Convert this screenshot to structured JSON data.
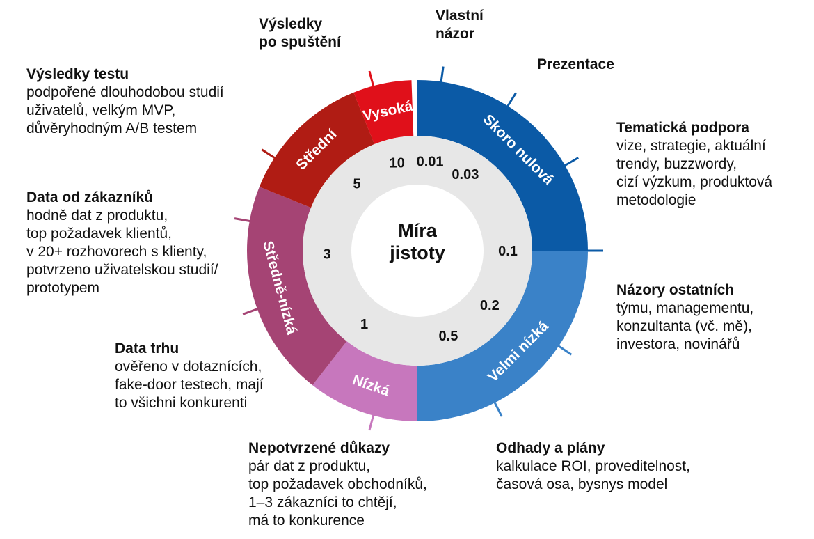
{
  "center": {
    "line1": "Míra",
    "line2": "jistoty"
  },
  "segments": [
    {
      "name": "Skoro nulová",
      "color": "#0b5aa6"
    },
    {
      "name": "Velmi nízká",
      "color": "#3a82c8"
    },
    {
      "name": "Nízká",
      "color": "#c777bd"
    },
    {
      "name": "Středně-nízká",
      "color": "#a54474"
    },
    {
      "name": "Střední",
      "color": "#b01c14"
    },
    {
      "name": "Vysoká",
      "color": "#e0101a"
    }
  ],
  "scale": [
    "0.01",
    "0.03",
    "0.1",
    "0.2",
    "0.5",
    "1",
    "3",
    "5",
    "10"
  ],
  "labels": {
    "vlastni": {
      "title": "Vlastní\nnázor"
    },
    "prezentace": {
      "title": "Prezentace"
    },
    "tematicka": {
      "title": "Tematická podpora",
      "desc": "vize, strategie, aktuální\ntrendy, buzzwordy,\ncizí výzkum, produktová\nmetodologie"
    },
    "nazory": {
      "title": "Názory ostatních",
      "desc": "týmu, managementu,\nkonzultanta (vč. mě),\ninvestora, novinářů"
    },
    "odhady": {
      "title": "Odhady a plány",
      "desc": "kalkulace ROI, proveditelnost,\nčasová osa, bysnys model"
    },
    "nepotvrzene": {
      "title": "Nepotvrzené důkazy",
      "desc": "pár dat z produktu,\ntop požadavek obchodníků,\n1–3 zákazníci to chtějí,\nmá to konkurence"
    },
    "trh": {
      "title": "Data trhu",
      "desc": "ověřeno v dotaznících,\nfake-door testech, mají\nto všichni konkurenti"
    },
    "zakaznici": {
      "title": "Data od zákazníků",
      "desc": "hodně dat z produktu,\ntop požadavek klientů,\nv 20+ rozhovorech s klienty,\npotvrzeno uživatelskou studií/\nprototypem"
    },
    "testy": {
      "title": "Výsledky testu",
      "desc": "podpořené dlouhodobou studií\nuživatelů, velkým MVP,\ndůvěryhodným A/B testem"
    },
    "spusteni": {
      "title": "Výsledky\npo spuštění"
    }
  }
}
